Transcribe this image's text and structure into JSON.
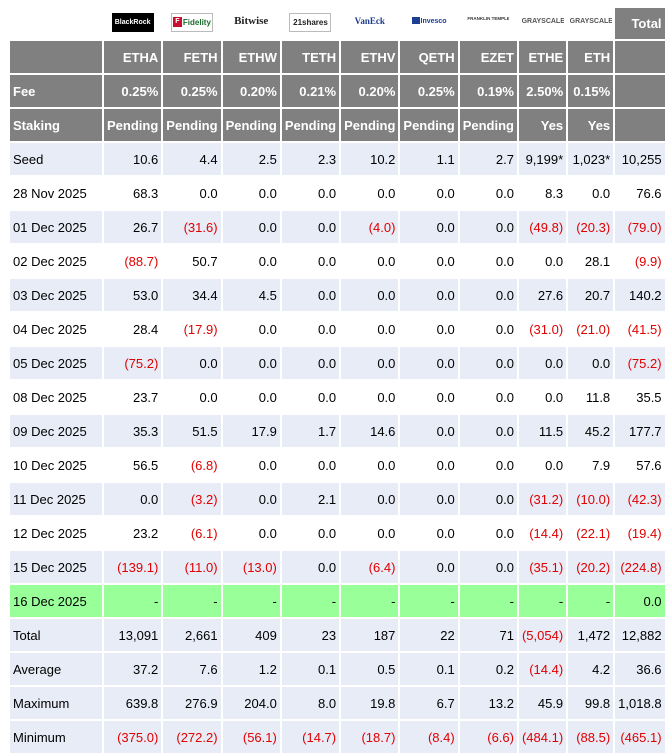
{
  "header": {
    "total_label": "Total",
    "logos": [
      "BlackRock",
      "Fidelity",
      "Bitwise",
      "21shares",
      "VanEck",
      "Invesco",
      "FRANKLIN TEMPLETON",
      "GRAYSCALE",
      "GRAYSCALE"
    ],
    "tickers": [
      "ETHA",
      "FETH",
      "ETHW",
      "TETH",
      "ETHV",
      "QETH",
      "EZET",
      "ETHE",
      "ETH"
    ],
    "fee_label": "Fee",
    "fees": [
      "0.25%",
      "0.25%",
      "0.20%",
      "0.21%",
      "0.20%",
      "0.25%",
      "0.19%",
      "2.50%",
      "0.15%"
    ],
    "staking_label": "Staking",
    "staking": [
      "Pending",
      "Pending",
      "Pending",
      "Pending",
      "Pending",
      "Pending",
      "Pending",
      "Yes",
      "Yes"
    ]
  },
  "rows": [
    {
      "label": "Seed",
      "values": [
        "10.6",
        "4.4",
        "2.5",
        "2.3",
        "10.2",
        "1.1",
        "2.7",
        "9,199*",
        "1,023*",
        "10,255"
      ],
      "style": "seed"
    },
    {
      "label": "28 Nov 2025",
      "values": [
        "68.3",
        "0.0",
        "0.0",
        "0.0",
        "0.0",
        "0.0",
        "0.0",
        "8.3",
        "0.0",
        "76.6"
      ],
      "style": "odd"
    },
    {
      "label": "01 Dec 2025",
      "values": [
        "26.7",
        "(31.6)",
        "0.0",
        "0.0",
        "(4.0)",
        "0.0",
        "0.0",
        "(49.8)",
        "(20.3)",
        "(79.0)"
      ],
      "style": "even"
    },
    {
      "label": "02 Dec 2025",
      "values": [
        "(88.7)",
        "50.7",
        "0.0",
        "0.0",
        "0.0",
        "0.0",
        "0.0",
        "0.0",
        "28.1",
        "(9.9)"
      ],
      "style": "odd"
    },
    {
      "label": "03 Dec 2025",
      "values": [
        "53.0",
        "34.4",
        "4.5",
        "0.0",
        "0.0",
        "0.0",
        "0.0",
        "27.6",
        "20.7",
        "140.2"
      ],
      "style": "even"
    },
    {
      "label": "04 Dec 2025",
      "values": [
        "28.4",
        "(17.9)",
        "0.0",
        "0.0",
        "0.0",
        "0.0",
        "0.0",
        "(31.0)",
        "(21.0)",
        "(41.5)"
      ],
      "style": "odd"
    },
    {
      "label": "05 Dec 2025",
      "values": [
        "(75.2)",
        "0.0",
        "0.0",
        "0.0",
        "0.0",
        "0.0",
        "0.0",
        "0.0",
        "0.0",
        "(75.2)"
      ],
      "style": "even"
    },
    {
      "label": "08 Dec 2025",
      "values": [
        "23.7",
        "0.0",
        "0.0",
        "0.0",
        "0.0",
        "0.0",
        "0.0",
        "0.0",
        "11.8",
        "35.5"
      ],
      "style": "odd"
    },
    {
      "label": "09 Dec 2025",
      "values": [
        "35.3",
        "51.5",
        "17.9",
        "1.7",
        "14.6",
        "0.0",
        "0.0",
        "11.5",
        "45.2",
        "177.7"
      ],
      "style": "even"
    },
    {
      "label": "10 Dec 2025",
      "values": [
        "56.5",
        "(6.8)",
        "0.0",
        "0.0",
        "0.0",
        "0.0",
        "0.0",
        "0.0",
        "7.9",
        "57.6"
      ],
      "style": "odd"
    },
    {
      "label": "11 Dec 2025",
      "values": [
        "0.0",
        "(3.2)",
        "0.0",
        "2.1",
        "0.0",
        "0.0",
        "0.0",
        "(31.2)",
        "(10.0)",
        "(42.3)"
      ],
      "style": "even"
    },
    {
      "label": "12 Dec 2025",
      "values": [
        "23.2",
        "(6.1)",
        "0.0",
        "0.0",
        "0.0",
        "0.0",
        "0.0",
        "(14.4)",
        "(22.1)",
        "(19.4)"
      ],
      "style": "odd"
    },
    {
      "label": "15 Dec 2025",
      "values": [
        "(139.1)",
        "(11.0)",
        "(13.0)",
        "0.0",
        "(6.4)",
        "0.0",
        "0.0",
        "(35.1)",
        "(20.2)",
        "(224.8)"
      ],
      "style": "even"
    },
    {
      "label": "16 Dec 2025",
      "values": [
        "-",
        "-",
        "-",
        "-",
        "-",
        "-",
        "-",
        "-",
        "-",
        "0.0"
      ],
      "style": "today"
    },
    {
      "label": "Total",
      "values": [
        "13,091",
        "2,661",
        "409",
        "23",
        "187",
        "22",
        "71",
        "(5,054)",
        "1,472",
        "12,882"
      ],
      "style": "even"
    },
    {
      "label": "Average",
      "values": [
        "37.2",
        "7.6",
        "1.2",
        "0.1",
        "0.5",
        "0.1",
        "0.2",
        "(14.4)",
        "4.2",
        "36.6"
      ],
      "style": "even"
    },
    {
      "label": "Maximum",
      "values": [
        "639.8",
        "276.9",
        "204.0",
        "8.0",
        "19.8",
        "6.7",
        "13.2",
        "45.9",
        "99.8",
        "1,018.8"
      ],
      "style": "even"
    },
    {
      "label": "Minimum",
      "values": [
        "(375.0)",
        "(272.2)",
        "(56.1)",
        "(14.7)",
        "(18.7)",
        "(8.4)",
        "(6.6)",
        "(484.1)",
        "(88.5)",
        "(465.1)"
      ],
      "style": "even"
    }
  ]
}
